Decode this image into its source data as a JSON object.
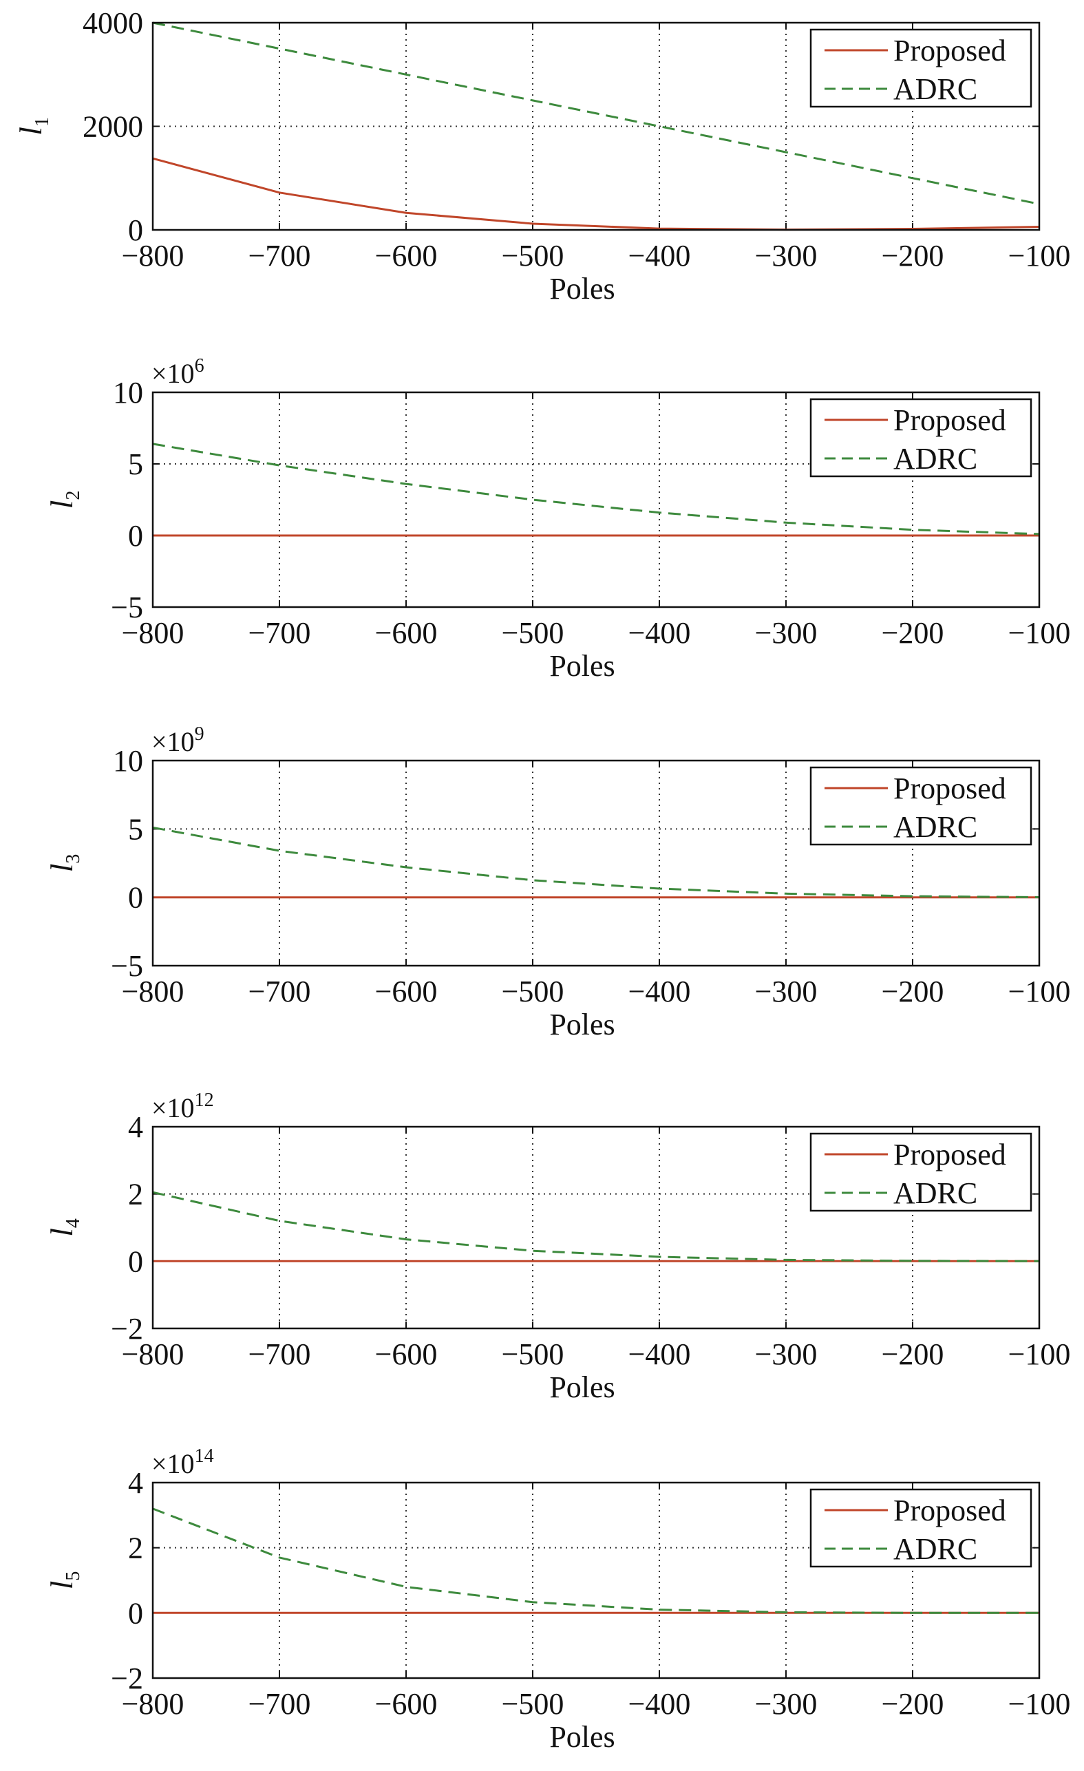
{
  "chart_data": [
    {
      "type": "line",
      "ylabel": "l",
      "ylabel_sub": "1",
      "xlabel": "Poles",
      "exponent_base": "",
      "exponent": "",
      "xlim": [
        -800,
        -100
      ],
      "ylim": [
        0,
        4000
      ],
      "xticks": [
        -800,
        -700,
        -600,
        -500,
        -400,
        -300,
        -200,
        -100
      ],
      "xtick_labels": [
        "−800",
        "−700",
        "−600",
        "−500",
        "−400",
        "−300",
        "−200",
        "−100"
      ],
      "yticks": [
        0,
        2000,
        4000
      ],
      "ytick_labels": [
        "0",
        "2000",
        "4000"
      ],
      "grid": true,
      "legend_placement": "top-right",
      "x": [
        -800,
        -700,
        -600,
        -500,
        -400,
        -300,
        -200,
        -100
      ],
      "series": [
        {
          "name": "Proposed",
          "style": "solid",
          "color": "#c0462a",
          "values": [
            1380,
            720,
            330,
            120,
            25,
            5,
            20,
            60
          ]
        },
        {
          "name": "ADRC",
          "style": "dashed",
          "color": "#3d8a3d",
          "values": [
            4000,
            3500,
            3000,
            2500,
            2000,
            1500,
            1000,
            500
          ]
        }
      ]
    },
    {
      "type": "line",
      "ylabel": "l",
      "ylabel_sub": "2",
      "xlabel": "Poles",
      "exponent_base": "×10",
      "exponent": "6",
      "xlim": [
        -800,
        -100
      ],
      "ylim": [
        -5,
        10
      ],
      "xticks": [
        -800,
        -700,
        -600,
        -500,
        -400,
        -300,
        -200,
        -100
      ],
      "xtick_labels": [
        "−800",
        "−700",
        "−600",
        "−500",
        "−400",
        "−300",
        "−200",
        "−100"
      ],
      "yticks": [
        -5,
        0,
        5,
        10
      ],
      "ytick_labels": [
        "−5",
        "0",
        "5",
        "10"
      ],
      "grid": true,
      "legend_placement": "top-right",
      "x": [
        -800,
        -700,
        -600,
        -500,
        -400,
        -300,
        -200,
        -100
      ],
      "series": [
        {
          "name": "Proposed",
          "style": "solid",
          "color": "#c0462a",
          "values": [
            0,
            0,
            0,
            0,
            0,
            0,
            0,
            0
          ]
        },
        {
          "name": "ADRC",
          "style": "dashed",
          "color": "#3d8a3d",
          "values": [
            6.4,
            4.9,
            3.6,
            2.5,
            1.6,
            0.9,
            0.4,
            0.1
          ]
        }
      ]
    },
    {
      "type": "line",
      "ylabel": "l",
      "ylabel_sub": "3",
      "xlabel": "Poles",
      "exponent_base": "×10",
      "exponent": "9",
      "xlim": [
        -800,
        -100
      ],
      "ylim": [
        -5,
        10
      ],
      "xticks": [
        -800,
        -700,
        -600,
        -500,
        -400,
        -300,
        -200,
        -100
      ],
      "xtick_labels": [
        "−800",
        "−700",
        "−600",
        "−500",
        "−400",
        "−300",
        "−200",
        "−100"
      ],
      "yticks": [
        -5,
        0,
        5,
        10
      ],
      "ytick_labels": [
        "−5",
        "0",
        "5",
        "10"
      ],
      "grid": true,
      "legend_placement": "top-right",
      "x": [
        -800,
        -700,
        -600,
        -500,
        -400,
        -300,
        -200,
        -100
      ],
      "series": [
        {
          "name": "Proposed",
          "style": "solid",
          "color": "#c0462a",
          "values": [
            0,
            0,
            0,
            0,
            0,
            0,
            0,
            0
          ]
        },
        {
          "name": "ADRC",
          "style": "dashed",
          "color": "#3d8a3d",
          "values": [
            5.1,
            3.4,
            2.2,
            1.25,
            0.64,
            0.27,
            0.08,
            0.01
          ]
        }
      ]
    },
    {
      "type": "line",
      "ylabel": "l",
      "ylabel_sub": "4",
      "xlabel": "Poles",
      "exponent_base": "×10",
      "exponent": "12",
      "xlim": [
        -800,
        -100
      ],
      "ylim": [
        -2,
        4
      ],
      "xticks": [
        -800,
        -700,
        -600,
        -500,
        -400,
        -300,
        -200,
        -100
      ],
      "xtick_labels": [
        "−800",
        "−700",
        "−600",
        "−500",
        "−400",
        "−300",
        "−200",
        "−100"
      ],
      "yticks": [
        -2,
        0,
        2,
        4
      ],
      "ytick_labels": [
        "−2",
        "0",
        "2",
        "4"
      ],
      "grid": true,
      "legend_placement": "top-right",
      "x": [
        -800,
        -700,
        -600,
        -500,
        -400,
        -300,
        -200,
        -100
      ],
      "series": [
        {
          "name": "Proposed",
          "style": "solid",
          "color": "#c0462a",
          "values": [
            0,
            0,
            0,
            0,
            0,
            0,
            0,
            0
          ]
        },
        {
          "name": "ADRC",
          "style": "dashed",
          "color": "#3d8a3d",
          "values": [
            2.05,
            1.2,
            0.65,
            0.31,
            0.13,
            0.04,
            0.01,
            0.0
          ]
        }
      ]
    },
    {
      "type": "line",
      "ylabel": "l",
      "ylabel_sub": "5",
      "xlabel": "Poles",
      "exponent_base": "×10",
      "exponent": "14",
      "xlim": [
        -800,
        -100
      ],
      "ylim": [
        -2,
        4
      ],
      "xticks": [
        -800,
        -700,
        -600,
        -500,
        -400,
        -300,
        -200,
        -100
      ],
      "xtick_labels": [
        "−800",
        "−700",
        "−600",
        "−500",
        "−400",
        "−300",
        "−200",
        "−100"
      ],
      "yticks": [
        -2,
        0,
        2,
        4
      ],
      "ytick_labels": [
        "−2",
        "0",
        "2",
        "4"
      ],
      "grid": true,
      "legend_placement": "top-right",
      "x": [
        -800,
        -700,
        -600,
        -500,
        -400,
        -300,
        -200,
        -100
      ],
      "series": [
        {
          "name": "Proposed",
          "style": "solid",
          "color": "#c0462a",
          "values": [
            0,
            0,
            0,
            0,
            0,
            0,
            0,
            0
          ]
        },
        {
          "name": "ADRC",
          "style": "dashed",
          "color": "#3d8a3d",
          "values": [
            3.2,
            1.7,
            0.8,
            0.33,
            0.1,
            0.02,
            0.0,
            0.0
          ]
        }
      ]
    }
  ]
}
